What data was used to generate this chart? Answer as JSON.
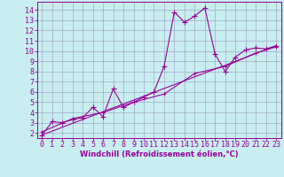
{
  "xlabel": "Windchill (Refroidissement éolien,°C)",
  "bg_color": "#c8eef0",
  "line_color": "#990099",
  "grid_color": "#9999bb",
  "xlim": [
    -0.5,
    23.5
  ],
  "ylim": [
    1.5,
    14.8
  ],
  "xticks": [
    0,
    1,
    2,
    3,
    4,
    5,
    6,
    7,
    8,
    9,
    10,
    11,
    12,
    13,
    14,
    15,
    16,
    17,
    18,
    19,
    20,
    21,
    22,
    23
  ],
  "yticks": [
    2,
    3,
    4,
    5,
    6,
    7,
    8,
    9,
    10,
    11,
    12,
    13,
    14
  ],
  "series1_x": [
    0,
    1,
    2,
    3,
    4,
    5,
    6,
    7,
    8,
    9,
    10,
    11,
    12,
    13,
    14,
    15,
    16,
    17,
    18,
    19,
    20,
    21,
    22,
    23
  ],
  "series1_y": [
    1.8,
    3.1,
    3.0,
    3.3,
    3.5,
    4.5,
    3.6,
    6.3,
    4.5,
    5.0,
    5.5,
    6.0,
    8.5,
    13.8,
    12.8,
    13.4,
    14.2,
    9.7,
    8.0,
    9.4,
    10.1,
    10.3,
    10.2,
    10.5
  ],
  "series2_x": [
    0,
    23
  ],
  "series2_y": [
    1.8,
    10.5
  ],
  "series3_x": [
    0,
    3,
    6,
    9,
    12,
    15,
    18,
    21,
    23
  ],
  "series3_y": [
    2.1,
    3.4,
    4.0,
    5.0,
    5.8,
    7.8,
    8.5,
    9.8,
    10.4
  ],
  "tick_fontsize": 6.0,
  "xlabel_fontsize": 6.0
}
